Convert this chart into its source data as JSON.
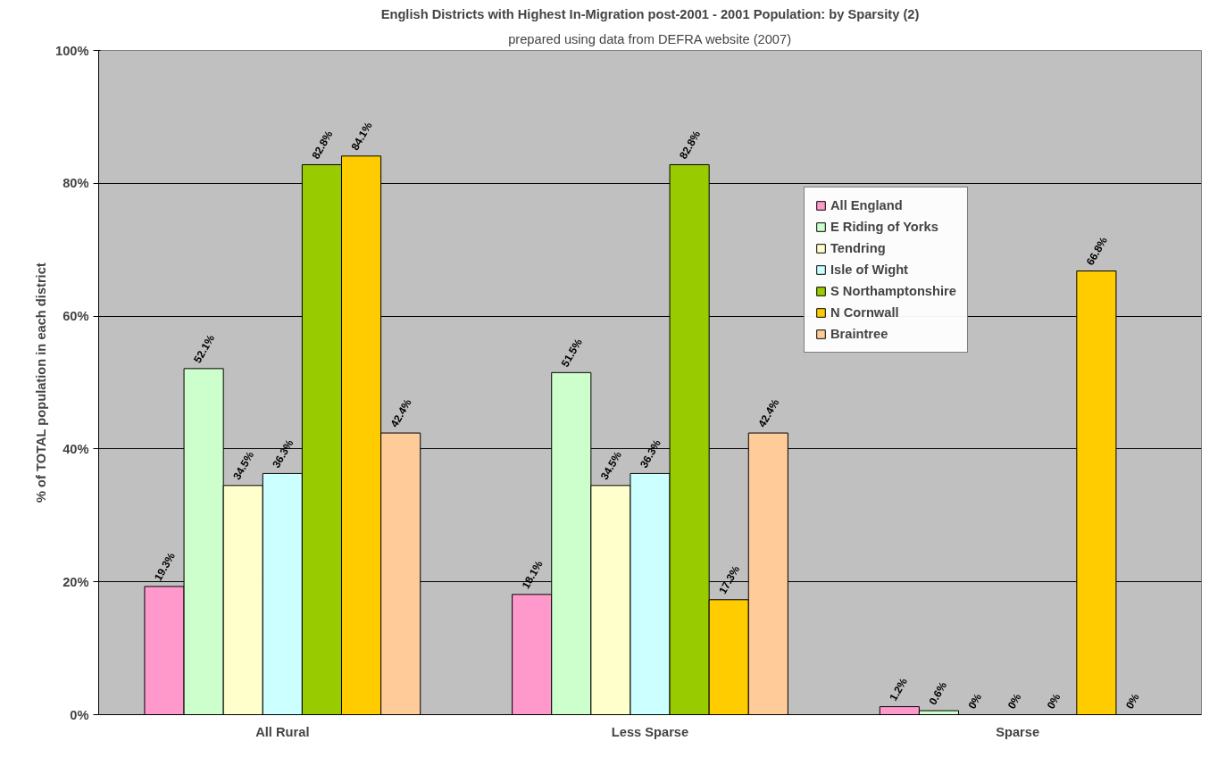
{
  "chart_data": {
    "type": "bar",
    "title": "English Districts with Highest In-Migration post-2001 - 2001 Population: by Sparsity (2)",
    "subtitle": "prepared using data from DEFRA website (2007)",
    "ylabel": "% of TOTAL population in each district",
    "categories": [
      "All Rural",
      "Less Sparse",
      "Sparse"
    ],
    "series": [
      {
        "name": "All England",
        "color": "#ff99cc",
        "values": [
          19.3,
          18.1,
          1.2
        ],
        "value_labels": [
          "19.3%",
          "18.1%",
          "1.2%"
        ]
      },
      {
        "name": "E Riding of Yorks",
        "color": "#ccffcc",
        "values": [
          52.1,
          51.5,
          0.6
        ],
        "value_labels": [
          "52.1%",
          "51.5%",
          "0.6%"
        ]
      },
      {
        "name": "Tendring",
        "color": "#ffffcc",
        "values": [
          34.5,
          34.5,
          0
        ],
        "value_labels": [
          "34.5%",
          "34.5%",
          "0%"
        ]
      },
      {
        "name": "Isle of Wight",
        "color": "#ccffff",
        "values": [
          36.3,
          36.3,
          0
        ],
        "value_labels": [
          "36.3%",
          "36.3%",
          "0%"
        ]
      },
      {
        "name": "S Northamptonshire",
        "color": "#99cc00",
        "values": [
          82.8,
          82.8,
          0
        ],
        "value_labels": [
          "82.8%",
          "82.8%",
          "0%"
        ]
      },
      {
        "name": "N Cornwall",
        "color": "#ffcc00",
        "values": [
          84.1,
          17.3,
          66.8
        ],
        "value_labels": [
          "84.1%",
          "17.3%",
          "66.8%"
        ]
      },
      {
        "name": "Braintree",
        "color": "#ffcc99",
        "values": [
          42.4,
          42.4,
          0
        ],
        "value_labels": [
          "42.4%",
          "42.4%",
          "0%"
        ]
      }
    ],
    "ylim": [
      0,
      100
    ],
    "yticks": [
      {
        "value": 0,
        "label": "0%"
      },
      {
        "value": 20,
        "label": "20%"
      },
      {
        "value": 40,
        "label": "40%"
      },
      {
        "value": 60,
        "label": "60%"
      },
      {
        "value": 80,
        "label": "80%"
      },
      {
        "value": 100,
        "label": "100%"
      }
    ],
    "grid": "y",
    "legend": "top right"
  }
}
